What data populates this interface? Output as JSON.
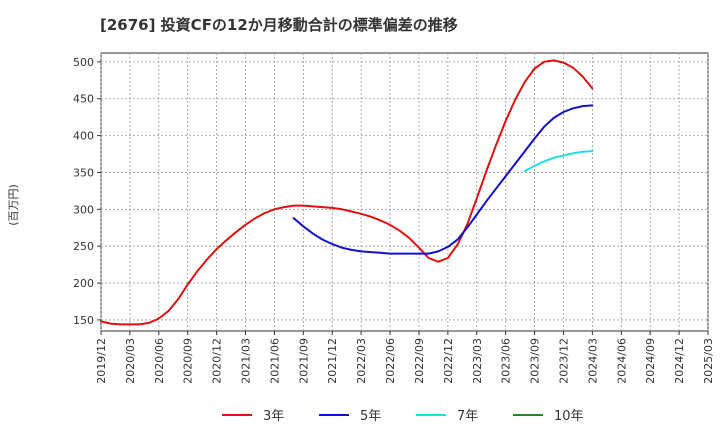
{
  "chart_data": {
    "type": "line",
    "title": "[2676]  投資CFの12か月移動合計の標準偏差の推移",
    "ylabel": "(百万円)",
    "xlabel": "",
    "ylim": [
      135,
      512
    ],
    "yticks": [
      150,
      200,
      250,
      300,
      350,
      400,
      450,
      500
    ],
    "x_range": [
      "2019-12",
      "2025-03"
    ],
    "xticks": [
      "2019/12",
      "2020/03",
      "2020/06",
      "2020/09",
      "2020/12",
      "2021/03",
      "2021/06",
      "2021/09",
      "2021/12",
      "2022/03",
      "2022/06",
      "2022/09",
      "2022/12",
      "2023/03",
      "2023/06",
      "2023/09",
      "2023/12",
      "2024/03",
      "2024/06",
      "2024/09",
      "2024/12",
      "2025/03"
    ],
    "grid": true,
    "legend_position": "bottom",
    "series": [
      {
        "name": "3年",
        "color": "#dd1111",
        "points": [
          [
            "2019-12",
            148
          ],
          [
            "2020-01",
            145
          ],
          [
            "2020-02",
            144
          ],
          [
            "2020-03",
            144
          ],
          [
            "2020-04",
            144
          ],
          [
            "2020-05",
            146
          ],
          [
            "2020-06",
            152
          ],
          [
            "2020-07",
            162
          ],
          [
            "2020-08",
            178
          ],
          [
            "2020-09",
            198
          ],
          [
            "2020-10",
            216
          ],
          [
            "2020-11",
            232
          ],
          [
            "2020-12",
            246
          ],
          [
            "2021-01",
            258
          ],
          [
            "2021-02",
            269
          ],
          [
            "2021-03",
            279
          ],
          [
            "2021-04",
            288
          ],
          [
            "2021-05",
            295
          ],
          [
            "2021-06",
            300
          ],
          [
            "2021-07",
            303
          ],
          [
            "2021-08",
            305
          ],
          [
            "2021-09",
            305
          ],
          [
            "2021-10",
            304
          ],
          [
            "2021-11",
            303
          ],
          [
            "2021-12",
            302
          ],
          [
            "2022-01",
            300
          ],
          [
            "2022-02",
            297
          ],
          [
            "2022-03",
            294
          ],
          [
            "2022-04",
            290
          ],
          [
            "2022-05",
            285
          ],
          [
            "2022-06",
            279
          ],
          [
            "2022-07",
            271
          ],
          [
            "2022-08",
            261
          ],
          [
            "2022-09",
            248
          ],
          [
            "2022-10",
            234
          ],
          [
            "2022-11",
            229
          ],
          [
            "2022-12",
            234
          ],
          [
            "2023-01",
            252
          ],
          [
            "2023-02",
            279
          ],
          [
            "2023-03",
            315
          ],
          [
            "2023-04",
            352
          ],
          [
            "2023-05",
            387
          ],
          [
            "2023-06",
            420
          ],
          [
            "2023-07",
            449
          ],
          [
            "2023-08",
            473
          ],
          [
            "2023-09",
            491
          ],
          [
            "2023-10",
            500
          ],
          [
            "2023-11",
            502
          ],
          [
            "2023-12",
            499
          ],
          [
            "2024-01",
            492
          ],
          [
            "2024-02",
            480
          ],
          [
            "2024-03",
            464
          ]
        ]
      },
      {
        "name": "5年",
        "color": "#1111cc",
        "points": [
          [
            "2021-08",
            288
          ],
          [
            "2021-09",
            277
          ],
          [
            "2021-10",
            267
          ],
          [
            "2021-11",
            259
          ],
          [
            "2021-12",
            253
          ],
          [
            "2022-01",
            248
          ],
          [
            "2022-02",
            245
          ],
          [
            "2022-03",
            243
          ],
          [
            "2022-04",
            242
          ],
          [
            "2022-05",
            241
          ],
          [
            "2022-06",
            240
          ],
          [
            "2022-07",
            240
          ],
          [
            "2022-08",
            240
          ],
          [
            "2022-09",
            240
          ],
          [
            "2022-10",
            240
          ],
          [
            "2022-11",
            243
          ],
          [
            "2022-12",
            249
          ],
          [
            "2023-01",
            259
          ],
          [
            "2023-02",
            275
          ],
          [
            "2023-03",
            293
          ],
          [
            "2023-04",
            311
          ],
          [
            "2023-05",
            328
          ],
          [
            "2023-06",
            345
          ],
          [
            "2023-07",
            362
          ],
          [
            "2023-08",
            379
          ],
          [
            "2023-09",
            396
          ],
          [
            "2023-10",
            412
          ],
          [
            "2023-11",
            424
          ],
          [
            "2023-12",
            432
          ],
          [
            "2024-01",
            437
          ],
          [
            "2024-02",
            440
          ],
          [
            "2024-03",
            441
          ]
        ]
      },
      {
        "name": "7年",
        "color": "#22dddd",
        "points": [
          [
            "2023-08",
            352
          ],
          [
            "2023-09",
            359
          ],
          [
            "2023-10",
            365
          ],
          [
            "2023-11",
            370
          ],
          [
            "2023-12",
            373
          ],
          [
            "2024-01",
            376
          ],
          [
            "2024-02",
            378
          ],
          [
            "2024-03",
            379
          ]
        ]
      },
      {
        "name": "10年",
        "color": "#228822",
        "points": []
      }
    ]
  }
}
